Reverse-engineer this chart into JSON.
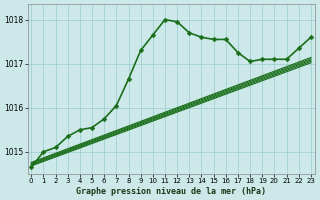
{
  "bg_color": "#cce8e8",
  "grid_color": "#99cccc",
  "line_color": "#1a6e1a",
  "xlabel": "Graphe pression niveau de la mer (hPa)",
  "ylim": [
    1014.5,
    1018.35
  ],
  "xlim": [
    -0.3,
    23.3
  ],
  "yticks": [
    1015,
    1016,
    1017,
    1018
  ],
  "xticks": [
    0,
    1,
    2,
    3,
    4,
    5,
    6,
    7,
    8,
    9,
    10,
    11,
    12,
    13,
    14,
    15,
    16,
    17,
    18,
    19,
    20,
    21,
    22,
    23
  ],
  "main_line": {
    "x": [
      0,
      1,
      2,
      3,
      4,
      5,
      6,
      7,
      8,
      9,
      10,
      11,
      12,
      13,
      14,
      15,
      16,
      17,
      18,
      19,
      20,
      21,
      22,
      23
    ],
    "y": [
      1014.65,
      1015.0,
      1015.1,
      1015.35,
      1015.5,
      1015.55,
      1015.75,
      1016.05,
      1016.65,
      1017.3,
      1017.65,
      1018.0,
      1017.95,
      1017.7,
      1017.6,
      1017.55,
      1017.55,
      1017.25,
      1017.05,
      1017.1,
      1017.1,
      1017.1,
      1017.35,
      1017.6
    ],
    "marker": "D",
    "markersize": 2.5,
    "lw": 1.2
  },
  "straight_lines": [
    {
      "x0": 0,
      "y0": 1014.7,
      "x1": 23,
      "y1": 1017.05
    },
    {
      "x0": 0,
      "y0": 1014.72,
      "x1": 23,
      "y1": 1017.08
    },
    {
      "x0": 0,
      "y0": 1014.74,
      "x1": 23,
      "y1": 1017.11
    },
    {
      "x0": 0,
      "y0": 1014.68,
      "x1": 23,
      "y1": 1017.02
    },
    {
      "x0": 0,
      "y0": 1014.76,
      "x1": 23,
      "y1": 1017.14
    }
  ]
}
